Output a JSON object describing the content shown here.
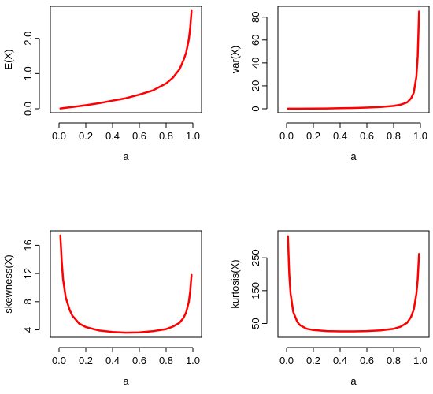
{
  "chart_data": [
    {
      "type": "line",
      "ylabel": "E(X)",
      "xlabel": "a",
      "xlim": [
        0,
        1
      ],
      "ylim": [
        0,
        2.8
      ],
      "xticks": [
        0,
        0.2,
        0.4,
        0.6,
        0.8,
        1.0
      ],
      "xtick_labels": [
        "0.0",
        "0.2",
        "0.4",
        "0.6",
        "0.8",
        "1.0"
      ],
      "yticks": [
        0,
        1,
        2
      ],
      "ytick_labels": [
        "0.0",
        "1.0",
        "2.0"
      ],
      "series_color": "#ff0000",
      "x": [
        0.01,
        0.05,
        0.1,
        0.2,
        0.3,
        0.4,
        0.5,
        0.6,
        0.7,
        0.8,
        0.85,
        0.9,
        0.93,
        0.95,
        0.97,
        0.98,
        0.99
      ],
      "y": [
        0.01,
        0.03,
        0.05,
        0.1,
        0.16,
        0.23,
        0.3,
        0.4,
        0.52,
        0.72,
        0.88,
        1.12,
        1.38,
        1.6,
        1.98,
        2.3,
        2.78
      ]
    },
    {
      "type": "line",
      "ylabel": "var(X)",
      "xlabel": "a",
      "xlim": [
        0,
        1
      ],
      "ylim": [
        0,
        86
      ],
      "xticks": [
        0,
        0.2,
        0.4,
        0.6,
        0.8,
        1.0
      ],
      "xtick_labels": [
        "0.0",
        "0.2",
        "0.4",
        "0.6",
        "0.8",
        "1.0"
      ],
      "yticks": [
        0,
        20,
        40,
        60,
        80
      ],
      "ytick_labels": [
        "0",
        "20",
        "40",
        "60",
        "80"
      ],
      "series_color": "#ff0000",
      "x": [
        0.01,
        0.1,
        0.2,
        0.3,
        0.4,
        0.5,
        0.6,
        0.7,
        0.8,
        0.85,
        0.9,
        0.93,
        0.95,
        0.97,
        0.98,
        0.99
      ],
      "y": [
        0.05,
        0.1,
        0.2,
        0.3,
        0.5,
        0.7,
        1.0,
        1.5,
        2.5,
        3.5,
        5.5,
        9,
        14,
        28,
        46,
        85
      ]
    },
    {
      "type": "line",
      "ylabel": "skewness(X)",
      "xlabel": "a",
      "xlim": [
        0,
        1
      ],
      "ylim": [
        3.5,
        17.5
      ],
      "xticks": [
        0,
        0.2,
        0.4,
        0.6,
        0.8,
        1.0
      ],
      "xtick_labels": [
        "0.0",
        "0.2",
        "0.4",
        "0.6",
        "0.8",
        "1.0"
      ],
      "yticks": [
        4,
        8,
        12,
        16
      ],
      "ytick_labels": [
        "4",
        "8",
        "12",
        "16"
      ],
      "series_color": "#ff0000",
      "x": [
        0.01,
        0.02,
        0.03,
        0.05,
        0.08,
        0.1,
        0.15,
        0.2,
        0.3,
        0.4,
        0.5,
        0.6,
        0.7,
        0.8,
        0.85,
        0.9,
        0.93,
        0.95,
        0.97,
        0.98,
        0.99
      ],
      "y": [
        17.4,
        13.8,
        11.2,
        8.6,
        6.8,
        6.0,
        4.9,
        4.4,
        3.9,
        3.7,
        3.6,
        3.65,
        3.8,
        4.1,
        4.45,
        5.0,
        5.7,
        6.5,
        8.0,
        9.5,
        11.8
      ]
    },
    {
      "type": "line",
      "ylabel": "kurtosis(X)",
      "xlabel": "a",
      "xlim": [
        0,
        1
      ],
      "ylim": [
        20,
        320
      ],
      "xticks": [
        0,
        0.2,
        0.4,
        0.6,
        0.8,
        1.0
      ],
      "xtick_labels": [
        "0.0",
        "0.2",
        "0.4",
        "0.6",
        "0.8",
        "1.0"
      ],
      "yticks": [
        50,
        150,
        250
      ],
      "ytick_labels": [
        "50",
        "150",
        "250"
      ],
      "series_color": "#ff0000",
      "x": [
        0.01,
        0.02,
        0.03,
        0.05,
        0.08,
        0.1,
        0.15,
        0.2,
        0.3,
        0.4,
        0.5,
        0.6,
        0.7,
        0.8,
        0.85,
        0.9,
        0.93,
        0.95,
        0.97,
        0.98,
        0.99
      ],
      "y": [
        316,
        200,
        140,
        85,
        55,
        45,
        34,
        30,
        27,
        26,
        26,
        27,
        29,
        34,
        40,
        52,
        70,
        92,
        140,
        185,
        262
      ]
    }
  ]
}
